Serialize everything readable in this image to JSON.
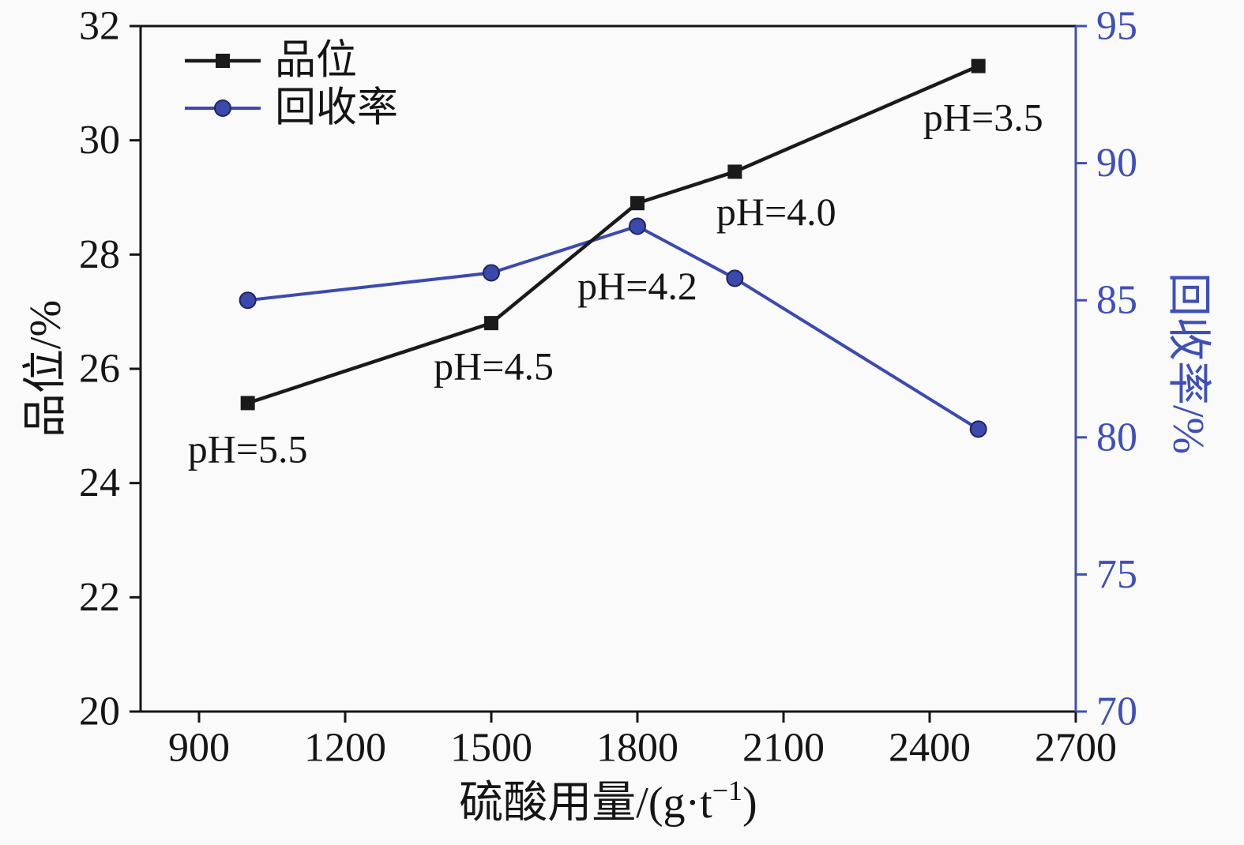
{
  "chart_data": {
    "type": "line",
    "title": "",
    "xlabel": "硫酸用量/(g·t⁻¹)",
    "xlabel_parts": [
      "硫酸用量/(g·t",
      "−1",
      ")"
    ],
    "ylabel_left": "品位/%",
    "ylabel_right": "回收率/%",
    "x": [
      1000,
      1500,
      1800,
      2000,
      2500
    ],
    "series": [
      {
        "name": "品位",
        "axis": "left",
        "marker": "square",
        "color": "#1a1a1a",
        "marker_fill": "#1a1a1a",
        "marker_edge": "#1a1a1a",
        "line_width": 4.5,
        "values": [
          25.4,
          26.8,
          28.9,
          29.45,
          31.3
        ]
      },
      {
        "name": "回收率",
        "axis": "right",
        "marker": "circle",
        "color": "#3b4ab2",
        "marker_fill": "#3a49aa",
        "marker_edge": "#1c2660",
        "line_width": 4,
        "values": [
          85.0,
          86.0,
          87.7,
          85.8,
          80.3
        ]
      }
    ],
    "xlim": [
      780,
      2700
    ],
    "x_ticks": [
      900,
      1200,
      1500,
      1800,
      2100,
      2400,
      2700
    ],
    "ylim_left": [
      20,
      32
    ],
    "y_ticks_left": [
      20,
      22,
      24,
      26,
      28,
      30,
      32
    ],
    "ylim_right": [
      70,
      95
    ],
    "y_ticks_right": [
      70,
      75,
      80,
      85,
      90,
      95
    ],
    "annotations": [
      {
        "text": "pH=5.5",
        "x": 1000,
        "y": 24.6
      },
      {
        "text": "pH=4.5",
        "x": 1505,
        "y": 26.05
      },
      {
        "text": "pH=4.2",
        "x": 1800,
        "y": 27.45
      },
      {
        "text": "pH=4.0",
        "x": 2085,
        "y": 28.75
      },
      {
        "text": "pH=3.5",
        "x": 2510,
        "y": 30.4
      }
    ],
    "legend": {
      "position": "top-left",
      "entries": [
        "品位",
        "回收率"
      ]
    },
    "grid": false,
    "colors": {
      "frame": "#151515",
      "recovery_axis": "#3e4fbb",
      "background": "#fafafa"
    }
  }
}
